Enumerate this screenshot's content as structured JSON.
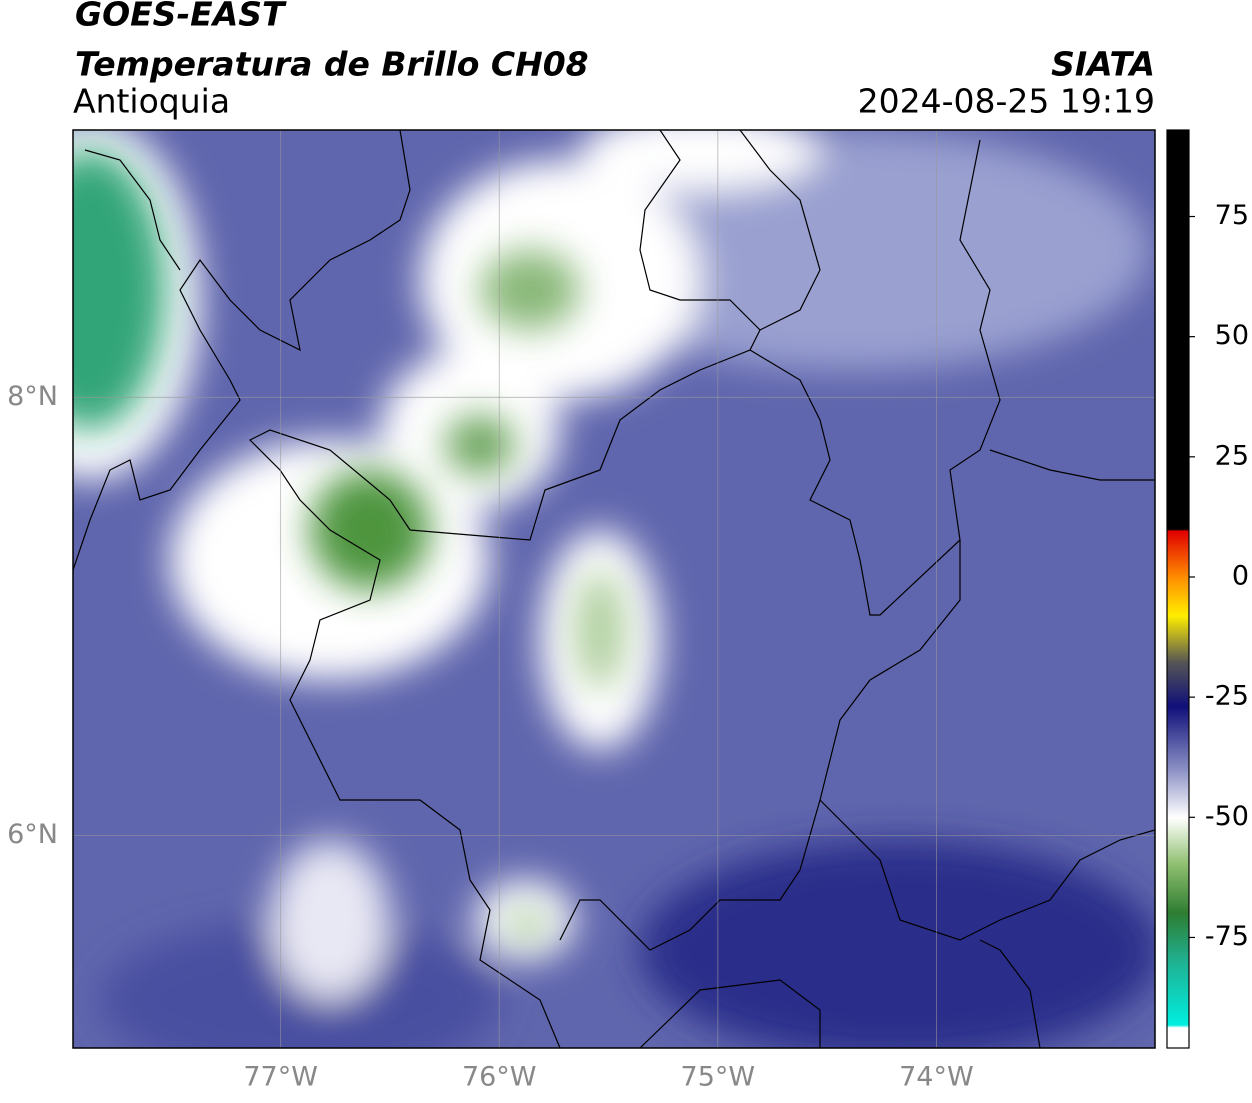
{
  "header": {
    "satellite": "GOES-EAST",
    "product": "Temperatura de Brillo CH08",
    "region": "Antioquia",
    "source": "SIATA",
    "datetime": "2024-08-25 19:19"
  },
  "map": {
    "lon_range": [
      -77.95,
      -73
    ],
    "lat_range": [
      5.03,
      9.22
    ],
    "lon_ticks": [
      {
        "value": -77,
        "label": "77°W"
      },
      {
        "value": -76,
        "label": "76°W"
      },
      {
        "value": -75,
        "label": "75°W"
      },
      {
        "value": -74,
        "label": "74°W"
      }
    ],
    "lat_ticks": [
      {
        "value": 8,
        "label": "8°N"
      },
      {
        "value": 6,
        "label": "6°N"
      }
    ],
    "grid": true
  },
  "colorbar": {
    "range": [
      -98,
      93
    ],
    "ticks": [
      75,
      50,
      25,
      0,
      -25,
      -50,
      -75
    ]
  }
}
